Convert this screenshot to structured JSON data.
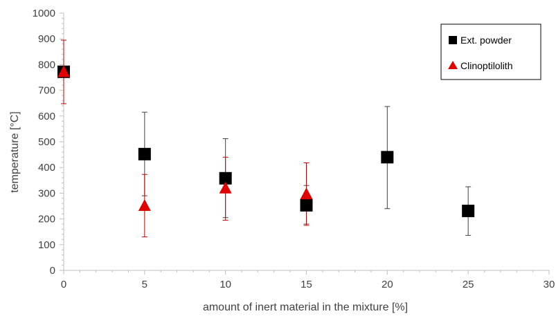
{
  "chart_data": {
    "type": "scatter",
    "title": "",
    "xlabel": "amount of inert material in the mixture [%]",
    "ylabel": "temperature [°C]",
    "xlim": [
      0,
      30
    ],
    "ylim": [
      0,
      1000
    ],
    "x_ticks": [
      0,
      5,
      10,
      15,
      20,
      25,
      30
    ],
    "y_ticks": [
      0,
      100,
      200,
      300,
      400,
      500,
      600,
      700,
      800,
      900,
      1000
    ],
    "x_tick_labels": [
      "0",
      "5",
      "10",
      "15",
      "20",
      "25",
      "30"
    ],
    "y_tick_labels": [
      "0",
      "100",
      "200",
      "300",
      "400",
      "500",
      "600",
      "700",
      "800",
      "900",
      "1000"
    ],
    "grid": false,
    "legend_position": "top-right",
    "series": [
      {
        "name": "Ext. powder",
        "marker": "square",
        "color": "#000000",
        "error_color": "#404040",
        "points": [
          {
            "x": 0,
            "y": 772,
            "err_low": 772,
            "err_high": 772
          },
          {
            "x": 5,
            "y": 452,
            "err_low": 290,
            "err_high": 615
          },
          {
            "x": 10,
            "y": 358,
            "err_low": 205,
            "err_high": 512
          },
          {
            "x": 15,
            "y": 253,
            "err_low": 180,
            "err_high": 330
          },
          {
            "x": 20,
            "y": 440,
            "err_low": 240,
            "err_high": 637
          },
          {
            "x": 25,
            "y": 231,
            "err_low": 136,
            "err_high": 325
          }
        ]
      },
      {
        "name": "Clinoptilolith",
        "marker": "triangle",
        "color": "#e00000",
        "error_color": "#c00000",
        "points": [
          {
            "x": 0,
            "y": 770,
            "err_low": 648,
            "err_high": 895
          },
          {
            "x": 5,
            "y": 250,
            "err_low": 130,
            "err_high": 373
          },
          {
            "x": 10,
            "y": 318,
            "err_low": 195,
            "err_high": 440
          },
          {
            "x": 15,
            "y": 295,
            "err_low": 175,
            "err_high": 418
          }
        ]
      }
    ]
  }
}
